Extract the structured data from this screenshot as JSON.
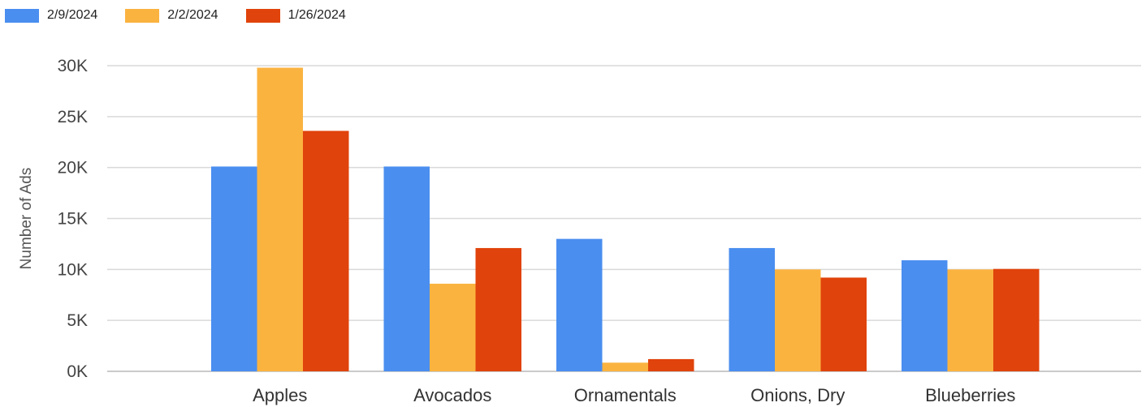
{
  "chart_data": {
    "type": "bar",
    "title": "",
    "xlabel": "",
    "ylabel": "Number of Ads",
    "ylim": [
      0,
      30000
    ],
    "yticks": [
      {
        "value": 0,
        "label": "0K"
      },
      {
        "value": 5000,
        "label": "5K"
      },
      {
        "value": 10000,
        "label": "10K"
      },
      {
        "value": 15000,
        "label": "15K"
      },
      {
        "value": 20000,
        "label": "20K"
      },
      {
        "value": 25000,
        "label": "25K"
      },
      {
        "value": 30000,
        "label": "30K"
      }
    ],
    "grid": true,
    "legend_position": "top-left",
    "categories": [
      "Apples",
      "Avocados",
      "Ornamentals",
      "Onions, Dry",
      "Blueberries"
    ],
    "series": [
      {
        "name": "2/9/2024",
        "color": "#4a8ef0",
        "values": [
          20100,
          20100,
          13000,
          12100,
          10900
        ]
      },
      {
        "name": "2/2/2024",
        "color": "#fbb340",
        "values": [
          29800,
          8600,
          850,
          10000,
          10000
        ]
      },
      {
        "name": "1/26/2024",
        "color": "#e0430b",
        "values": [
          23600,
          12100,
          1200,
          9200,
          10050
        ]
      }
    ]
  }
}
